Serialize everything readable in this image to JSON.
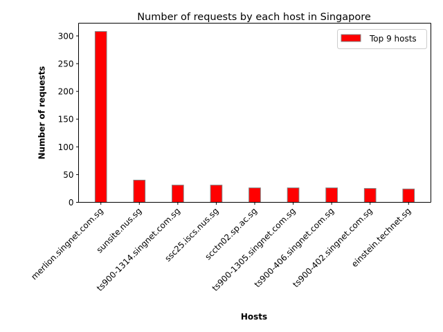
{
  "chart_data": {
    "type": "bar",
    "title": "Number of requests by each host in Singapore",
    "xlabel": "Hosts",
    "ylabel": "Number of requests",
    "categories": [
      "merlion.singnet.com.sg",
      "sunsite.nus.sg",
      "ts900-1314.singnet.com.sg",
      "ssc25.iscs.nus.sg",
      "scctn02.sp.ac.sg",
      "ts900-1305.singnet.com.sg",
      "ts900-406.singnet.com.sg",
      "ts900-402.singnet.com.sg",
      "einstein.technet.sg"
    ],
    "series": [
      {
        "name": "Top 9 hosts",
        "values": [
          308,
          40,
          31,
          31,
          26,
          26,
          26,
          25,
          24
        ],
        "color": "#ff0000",
        "edge_color": "#808080"
      }
    ],
    "ylim": [
      0,
      323
    ],
    "yticks": [
      0,
      50,
      100,
      150,
      200,
      250,
      300
    ],
    "grid": false,
    "legend_position": "top-right"
  }
}
